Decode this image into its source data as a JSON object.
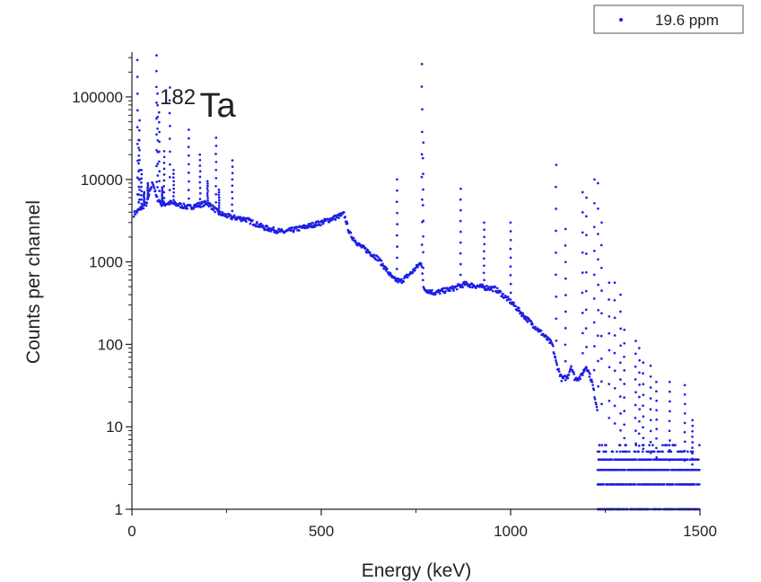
{
  "chart_data": {
    "type": "scatter",
    "title": "",
    "xlabel": "Energy (keV)",
    "ylabel": "Counts per channel",
    "xlim": [
      0,
      1500
    ],
    "ylim": [
      1,
      350000
    ],
    "yscale": "log",
    "x_ticks": [
      0,
      500,
      1000,
      1500
    ],
    "x_tick_labels": [
      "0",
      "500",
      "1000",
      "1500"
    ],
    "y_ticks": [
      1,
      10,
      100,
      1000,
      10000,
      100000
    ],
    "y_tick_labels": [
      "1",
      "10",
      "100",
      "1000",
      "10000",
      "100000"
    ],
    "grid": false,
    "legend_position": "top-right",
    "annotation": {
      "superscript": "182",
      "text": "Ta"
    },
    "marker_color": "#1f1fe6",
    "series": [
      {
        "name": "19.6 ppm",
        "continuum": [
          [
            5,
            3800
          ],
          [
            20,
            4300
          ],
          [
            40,
            5200
          ],
          [
            55,
            9500
          ],
          [
            65,
            6000
          ],
          [
            80,
            5000
          ],
          [
            100,
            5200
          ],
          [
            150,
            4600
          ],
          [
            200,
            5200
          ],
          [
            230,
            3900
          ],
          [
            260,
            3500
          ],
          [
            300,
            3300
          ],
          [
            350,
            2600
          ],
          [
            400,
            2300
          ],
          [
            450,
            2600
          ],
          [
            500,
            3000
          ],
          [
            540,
            3500
          ],
          [
            560,
            3800
          ],
          [
            575,
            2200
          ],
          [
            600,
            1600
          ],
          [
            650,
            1100
          ],
          [
            690,
            620
          ],
          [
            710,
            580
          ],
          [
            740,
            750
          ],
          [
            765,
            1000
          ],
          [
            770,
            470
          ],
          [
            800,
            420
          ],
          [
            850,
            480
          ],
          [
            880,
            540
          ],
          [
            920,
            500
          ],
          [
            960,
            470
          ],
          [
            1000,
            330
          ],
          [
            1040,
            210
          ],
          [
            1080,
            140
          ],
          [
            1110,
            100
          ],
          [
            1120,
            60
          ],
          [
            1135,
            38
          ],
          [
            1150,
            40
          ],
          [
            1160,
            55
          ],
          [
            1170,
            38
          ],
          [
            1185,
            40
          ],
          [
            1200,
            55
          ],
          [
            1215,
            35
          ],
          [
            1225,
            20
          ],
          [
            1240,
            10
          ],
          [
            1260,
            8
          ],
          [
            1300,
            5
          ],
          [
            1350,
            4
          ],
          [
            1400,
            3
          ],
          [
            1450,
            3
          ],
          [
            1490,
            2
          ]
        ],
        "peaks": [
          [
            15,
            280000
          ],
          [
            18,
            30000
          ],
          [
            20,
            52000
          ],
          [
            25,
            13000
          ],
          [
            32,
            7000
          ],
          [
            42,
            9000
          ],
          [
            65,
            320000
          ],
          [
            68,
            110000
          ],
          [
            72,
            65000
          ],
          [
            80,
            8000
          ],
          [
            85,
            22000
          ],
          [
            100,
            130000
          ],
          [
            110,
            13000
          ],
          [
            150,
            40000
          ],
          [
            180,
            20000
          ],
          [
            200,
            9500
          ],
          [
            222,
            32000
          ],
          [
            230,
            7500
          ],
          [
            265,
            17000
          ],
          [
            700,
            10000
          ],
          [
            766,
            250000
          ],
          [
            769,
            28000
          ],
          [
            868,
            7700
          ],
          [
            930,
            3000
          ],
          [
            1000,
            3000
          ],
          [
            1120,
            15000
          ],
          [
            1145,
            2500
          ],
          [
            1190,
            7000
          ],
          [
            1200,
            6000
          ],
          [
            1221,
            10000
          ],
          [
            1231,
            9000
          ],
          [
            1240,
            3000
          ],
          [
            1260,
            560
          ],
          [
            1275,
            560
          ],
          [
            1290,
            400
          ],
          [
            1300,
            150
          ],
          [
            1330,
            110
          ],
          [
            1340,
            90
          ],
          [
            1350,
            60
          ],
          [
            1370,
            55
          ],
          [
            1385,
            35
          ],
          [
            1420,
            35
          ],
          [
            1460,
            32
          ],
          [
            1480,
            12
          ]
        ],
        "low_count_band": {
          "x_range": [
            1230,
            1500
          ],
          "levels": [
            1,
            2,
            3,
            4,
            5,
            6
          ]
        }
      }
    ]
  }
}
